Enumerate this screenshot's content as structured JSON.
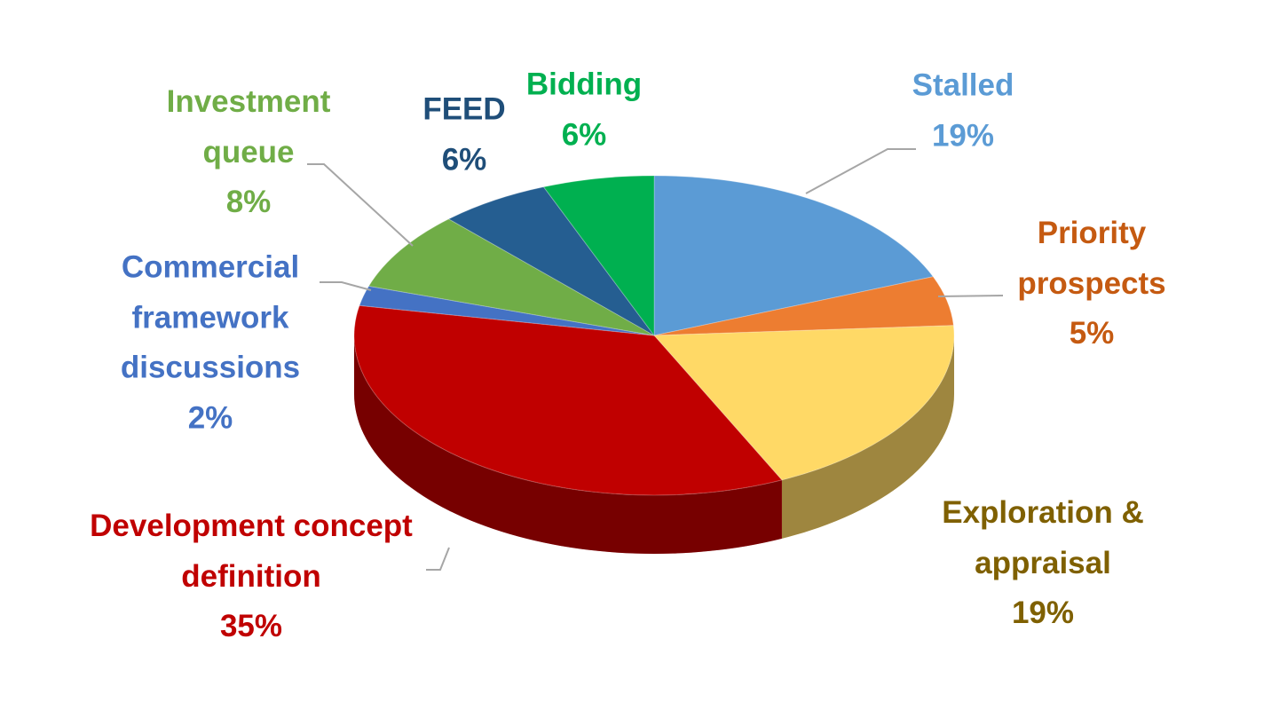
{
  "chart_data": {
    "type": "pie",
    "categories": [
      "Stalled",
      "Priority prospects",
      "Exploration & appraisal",
      "Development concept definition",
      "Commercial framework discussions",
      "Investment queue",
      "FEED",
      "Bidding"
    ],
    "values": [
      19,
      5,
      19,
      35,
      2,
      8,
      6,
      6
    ],
    "value_labels": [
      "19%",
      "5%",
      "19%",
      "35%",
      "2%",
      "8%",
      "6%",
      "6%"
    ],
    "colors": [
      "#5b9bd5",
      "#ed7d31",
      "#ffd966",
      "#c00000",
      "#4472c4",
      "#70ad47",
      "#255e91",
      "#00b050"
    ],
    "label_colors": [
      "#5b9bd5",
      "#c55a11",
      "#7f6000",
      "#c00000",
      "#4472c4",
      "#70ad47",
      "#1f4e79",
      "#00b050"
    ]
  }
}
